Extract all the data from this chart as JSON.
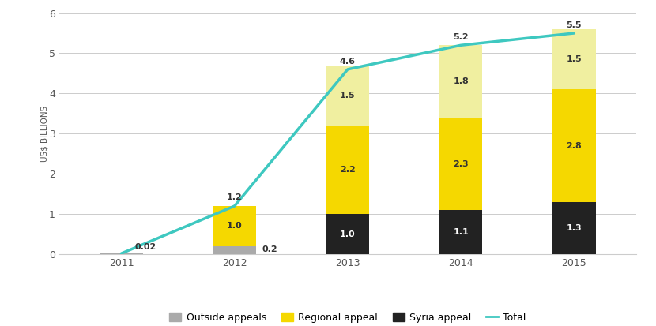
{
  "years": [
    2011,
    2012,
    2013,
    2014,
    2015
  ],
  "outside_appeals": [
    0.02,
    0.2,
    0.0,
    0.0,
    0.0
  ],
  "syria_appeal": [
    0.0,
    0.0,
    1.0,
    1.1,
    1.3
  ],
  "regional_appeal": [
    0.0,
    1.0,
    2.2,
    2.3,
    2.8
  ],
  "top_segment": [
    0.0,
    0.0,
    1.5,
    1.8,
    1.5
  ],
  "total_line": [
    0.02,
    1.2,
    4.6,
    5.2,
    5.5
  ],
  "total_labels": [
    "0.02",
    "1.2",
    "4.6",
    "5.2",
    "5.5"
  ],
  "outside_labels": [
    "0.02",
    "0.2",
    "",
    "",
    ""
  ],
  "syria_labels": [
    "",
    "",
    "1.0",
    "1.1",
    "1.3"
  ],
  "regional_labels": [
    "",
    "1.0",
    "2.2",
    "2.3",
    "2.8"
  ],
  "top_labels": [
    "",
    "",
    "1.5",
    "1.8",
    "1.5"
  ],
  "color_outside": "#aaaaaa",
  "color_syria": "#222222",
  "color_regional": "#f5d800",
  "color_top": "#f0efa0",
  "color_line": "#3ec8c0",
  "color_bg": "#ffffff",
  "ylabel": "US$ BILLIONS",
  "ylim": [
    0,
    6
  ],
  "yticks": [
    0,
    1,
    2,
    3,
    4,
    5,
    6
  ],
  "bar_width": 0.38,
  "legend_outside": "Outside appeals",
  "legend_regional": "Regional appeal",
  "legend_syria": "Syria appeal",
  "legend_total": "Total"
}
